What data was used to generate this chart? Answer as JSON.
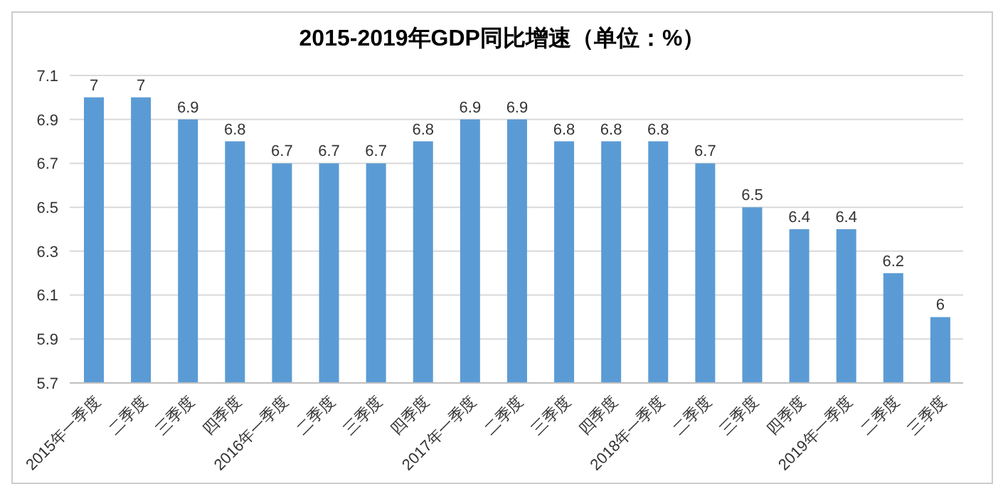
{
  "chart_data": {
    "type": "bar",
    "title": "2015-2019年GDP同比增速（单位：%）",
    "categories": [
      "2015年一季度",
      "二季度",
      "三季度",
      "四季度",
      "2016年一季度",
      "二季度",
      "三季度",
      "四季度",
      "2017年一季度",
      "二季度",
      "三季度",
      "四季度",
      "2018年一季度",
      "二季度",
      "三季度",
      "四季度",
      "2019年一季度",
      "二季度",
      "三季度"
    ],
    "values": [
      7,
      7,
      6.9,
      6.8,
      6.7,
      6.7,
      6.7,
      6.8,
      6.9,
      6.9,
      6.8,
      6.8,
      6.8,
      6.7,
      6.5,
      6.4,
      6.4,
      6.2,
      6
    ],
    "color": "#5b9bd5",
    "ylim": [
      5.7,
      7.1
    ],
    "yticks": [
      5.7,
      5.9,
      6.1,
      6.3,
      6.5,
      6.7,
      6.9,
      7.1
    ],
    "grid": "y",
    "data_labels": true
  }
}
